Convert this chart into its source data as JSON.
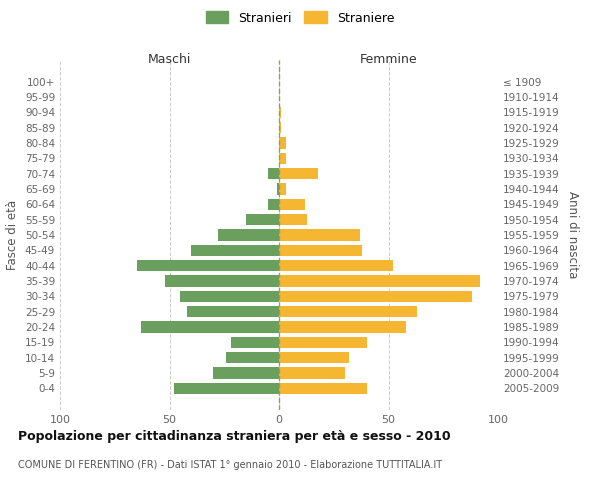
{
  "age_groups": [
    "100+",
    "95-99",
    "90-94",
    "85-89",
    "80-84",
    "75-79",
    "70-74",
    "65-69",
    "60-64",
    "55-59",
    "50-54",
    "45-49",
    "40-44",
    "35-39",
    "30-34",
    "25-29",
    "20-24",
    "15-19",
    "10-14",
    "5-9",
    "0-4"
  ],
  "birth_years": [
    "≤ 1909",
    "1910-1914",
    "1915-1919",
    "1920-1924",
    "1925-1929",
    "1930-1934",
    "1935-1939",
    "1940-1944",
    "1945-1949",
    "1950-1954",
    "1955-1959",
    "1960-1964",
    "1965-1969",
    "1970-1974",
    "1975-1979",
    "1980-1984",
    "1985-1989",
    "1990-1994",
    "1995-1999",
    "2000-2004",
    "2005-2009"
  ],
  "males": [
    0,
    0,
    0,
    0,
    0,
    0,
    5,
    1,
    5,
    15,
    28,
    40,
    65,
    52,
    45,
    42,
    63,
    22,
    24,
    30,
    48
  ],
  "females": [
    0,
    0,
    1,
    1,
    3,
    3,
    18,
    3,
    12,
    13,
    37,
    38,
    52,
    92,
    88,
    63,
    58,
    40,
    32,
    30,
    40
  ],
  "male_color": "#6a9f5e",
  "female_color": "#f5b731",
  "background_color": "#ffffff",
  "grid_color": "#cccccc",
  "title": "Popolazione per cittadinanza straniera per età e sesso - 2010",
  "subtitle": "COMUNE DI FERENTINO (FR) - Dati ISTAT 1° gennaio 2010 - Elaborazione TUTTITALIA.IT",
  "xlabel_left": "Maschi",
  "xlabel_right": "Femmine",
  "ylabel_left": "Fasce di età",
  "ylabel_right": "Anni di nascita",
  "legend_male": "Stranieri",
  "legend_female": "Straniere",
  "xlim": 100,
  "dashed_line_color": "#999966"
}
